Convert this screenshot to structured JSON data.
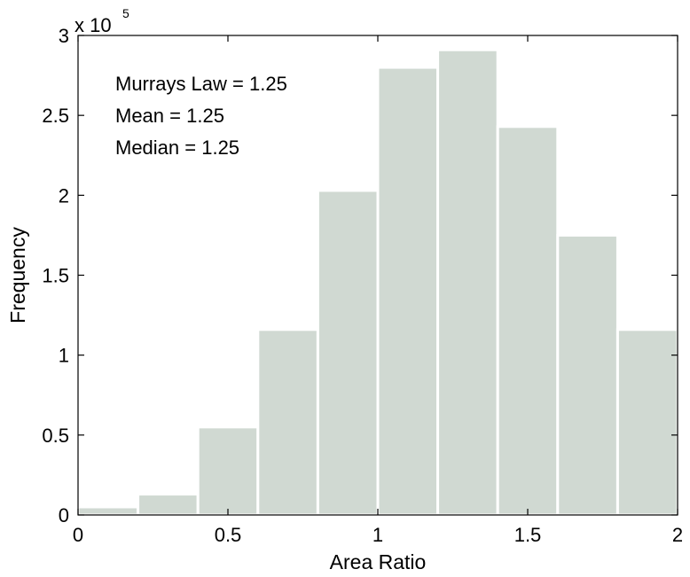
{
  "chart_data": {
    "type": "bar",
    "xlabel": "Area Ratio",
    "ylabel": "Frequency",
    "xlim": [
      0,
      2
    ],
    "ylim": [
      0,
      3
    ],
    "y_scale_multiplier": {
      "base": "x 10",
      "exponent": "5"
    },
    "bins": [
      {
        "x0": 0.0,
        "x1": 0.2,
        "value": 0.05
      },
      {
        "x0": 0.2,
        "x1": 0.4,
        "value": 0.13
      },
      {
        "x0": 0.4,
        "x1": 0.6,
        "value": 0.55
      },
      {
        "x0": 0.6,
        "x1": 0.8,
        "value": 1.16
      },
      {
        "x0": 0.8,
        "x1": 1.0,
        "value": 2.03
      },
      {
        "x0": 1.0,
        "x1": 1.2,
        "value": 2.8
      },
      {
        "x0": 1.2,
        "x1": 1.4,
        "value": 2.91
      },
      {
        "x0": 1.4,
        "x1": 1.6,
        "value": 2.43
      },
      {
        "x0": 1.6,
        "x1": 1.8,
        "value": 1.75
      },
      {
        "x0": 1.8,
        "x1": 2.0,
        "value": 1.16
      }
    ],
    "xticks": [
      {
        "value": 0,
        "label": "0"
      },
      {
        "value": 0.5,
        "label": "0.5"
      },
      {
        "value": 1,
        "label": "1"
      },
      {
        "value": 1.5,
        "label": "1.5"
      },
      {
        "value": 2,
        "label": "2"
      }
    ],
    "yticks": [
      {
        "value": 0,
        "label": "0"
      },
      {
        "value": 0.5,
        "label": "0.5"
      },
      {
        "value": 1,
        "label": "1"
      },
      {
        "value": 1.5,
        "label": "1.5"
      },
      {
        "value": 2,
        "label": "2"
      },
      {
        "value": 2.5,
        "label": "2.5"
      },
      {
        "value": 3,
        "label": "3"
      }
    ],
    "annotations": [
      "Murrays Law = 1.25",
      "Mean = 1.25",
      "Median = 1.25"
    ],
    "bar_color": "#d0d9d2",
    "bar_edge_color": "#ffffff",
    "grid": false,
    "legend": "none"
  }
}
